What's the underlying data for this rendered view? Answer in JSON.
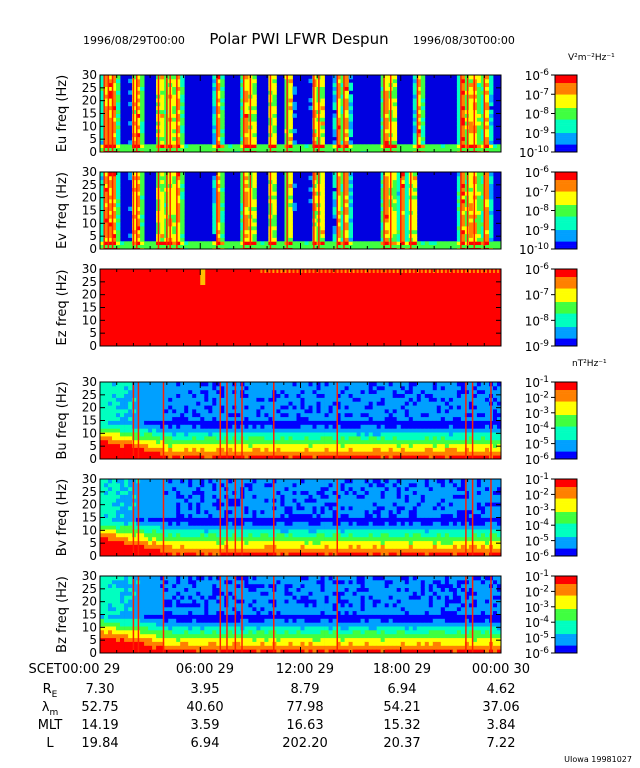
{
  "header": {
    "start_time": "1996/08/29T00:00",
    "title": "Polar PWI LFWR Despun",
    "end_time": "1996/08/30T00:00"
  },
  "units": {
    "electric": "V²m⁻²Hz⁻¹",
    "magnetic": "nT²Hz⁻¹"
  },
  "footer": {
    "credit": "UIowa 19981027"
  },
  "ephemeris": {
    "scet_label": "SCET",
    "times": [
      "00:00 29",
      "06:00 29",
      "12:00 29",
      "18:00 29",
      "00:00 30"
    ],
    "rows": [
      {
        "label": "R",
        "sub": "E",
        "values": [
          "7.30",
          "3.95",
          "8.79",
          "6.94",
          "4.62"
        ]
      },
      {
        "label": "λ",
        "sub": "m",
        "values": [
          "52.75",
          "40.60",
          "77.98",
          "54.21",
          "37.06"
        ]
      },
      {
        "label": "MLT",
        "sub": "",
        "values": [
          "14.19",
          "3.59",
          "16.63",
          "15.32",
          "3.84"
        ]
      },
      {
        "label": "L",
        "sub": "",
        "values": [
          "19.84",
          "6.94",
          "202.20",
          "20.37",
          "7.22"
        ]
      }
    ]
  },
  "chart_data": {
    "type": "heatmap",
    "title": "Polar PWI LFWR Despun",
    "x_range": [
      "1996/08/29T00:00",
      "1996/08/30T00:00"
    ],
    "x_hours": [
      0,
      24
    ],
    "xlabel": "SCET",
    "colorscale": [
      "#0000ff",
      "#00a0ff",
      "#00ffc0",
      "#40ff40",
      "#ffff00",
      "#ff8000",
      "#ff0000"
    ],
    "panels": [
      {
        "name": "Eu freq (Hz)",
        "ylim": [
          0,
          30
        ],
        "yticks": [
          "0",
          "5",
          "10",
          "15",
          "20",
          "25",
          "30"
        ],
        "colorbar": {
          "unit": "V²m⁻²Hz⁻¹",
          "exp_min": -10,
          "exp_max": -6,
          "labels": [
            "-6",
            "-7",
            "-8",
            "-9",
            "-10"
          ]
        },
        "kind": "E",
        "bursts_hours": [
          0.25,
          0.5,
          0.75,
          2.0,
          2.2,
          3.5,
          4.0,
          4.2,
          4.6,
          7.0,
          8.6,
          9.0,
          10.2,
          11.2,
          12.8,
          13.1,
          14.2,
          14.6,
          17.0,
          17.4,
          19.0,
          21.6,
          22.0,
          22.4,
          23.0
        ]
      },
      {
        "name": "Ev freq (Hz)",
        "ylim": [
          0,
          30
        ],
        "yticks": [
          "0",
          "5",
          "10",
          "15",
          "20",
          "25",
          "30"
        ],
        "colorbar": {
          "unit": "",
          "exp_min": -10,
          "exp_max": -6,
          "labels": [
            "-6",
            "-7",
            "-8",
            "-9",
            "-10"
          ]
        },
        "kind": "E",
        "bursts_hours": [
          0.25,
          0.5,
          0.75,
          2.0,
          2.2,
          3.5,
          4.0,
          4.2,
          4.6,
          7.0,
          8.6,
          9.0,
          10.2,
          11.2,
          12.8,
          13.1,
          14.2,
          14.6,
          17.0,
          17.4,
          18.0,
          18.6,
          21.6,
          22.0,
          22.4,
          23.0
        ]
      },
      {
        "name": "Ez freq (Hz)",
        "ylim": [
          0,
          30
        ],
        "yticks": [
          "0",
          "5",
          "10",
          "15",
          "20",
          "25",
          "30"
        ],
        "colorbar": {
          "unit": "",
          "exp_min": -9,
          "exp_max": -6,
          "labels": [
            "-6",
            "-7",
            "-8",
            "-9"
          ]
        },
        "kind": "Ez",
        "bursts_hours": []
      },
      {
        "name": "Bu freq (Hz)",
        "ylim": [
          0,
          30
        ],
        "yticks": [
          "0",
          "5",
          "10",
          "15",
          "20",
          "25",
          "30"
        ],
        "colorbar": {
          "unit": "nT²Hz⁻¹",
          "exp_min": -6,
          "exp_max": -1,
          "labels": [
            "-1",
            "-2",
            "-3",
            "-4",
            "-5",
            "-6"
          ]
        },
        "kind": "B",
        "bursts_hours": [
          2.0,
          2.3,
          3.8,
          7.2,
          7.6,
          8.1,
          8.5,
          10.4,
          14.2,
          21.9,
          22.3,
          23.4
        ]
      },
      {
        "name": "Bv freq (Hz)",
        "ylim": [
          0,
          30
        ],
        "yticks": [
          "0",
          "5",
          "10",
          "15",
          "20",
          "25",
          "30"
        ],
        "colorbar": {
          "unit": "",
          "exp_min": -6,
          "exp_max": -1,
          "labels": [
            "-1",
            "-2",
            "-3",
            "-4",
            "-5",
            "-6"
          ]
        },
        "kind": "B",
        "bursts_hours": [
          2.0,
          2.3,
          3.8,
          7.2,
          7.6,
          8.1,
          8.5,
          10.4,
          14.2,
          21.9,
          22.3,
          23.4
        ]
      },
      {
        "name": "Bz freq (Hz)",
        "ylim": [
          0,
          30
        ],
        "yticks": [
          "0",
          "5",
          "10",
          "15",
          "20",
          "25",
          "30"
        ],
        "colorbar": {
          "unit": "",
          "exp_min": -6,
          "exp_max": -1,
          "labels": [
            "-1",
            "-2",
            "-3",
            "-4",
            "-5",
            "-6"
          ]
        },
        "kind": "B",
        "bursts_hours": [
          2.0,
          2.3,
          3.8,
          7.2,
          7.6,
          8.1,
          8.5,
          10.4,
          14.2,
          21.9,
          22.3,
          23.4
        ]
      }
    ]
  }
}
